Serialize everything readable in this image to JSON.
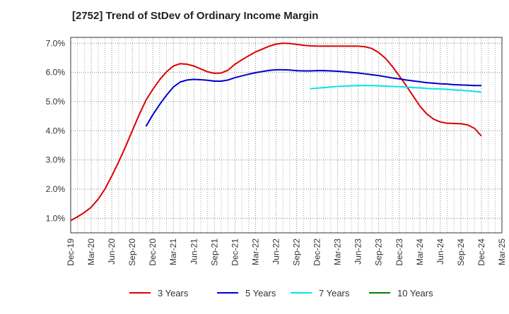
{
  "title": "[2752]  Trend of StDev of Ordinary Income Margin",
  "chart_data": {
    "type": "line",
    "title": "[2752]  Trend of StDev of Ordinary Income Margin",
    "xlabel": "",
    "ylabel": "",
    "x_ticks": [
      "Dec-19",
      "Mar-20",
      "Jun-20",
      "Sep-20",
      "Dec-20",
      "Mar-21",
      "Jun-21",
      "Sep-21",
      "Dec-21",
      "Mar-22",
      "Jun-22",
      "Sep-22",
      "Dec-22",
      "Mar-23",
      "Jun-23",
      "Sep-23",
      "Dec-23",
      "Mar-24",
      "Jun-24",
      "Sep-24",
      "Dec-24",
      "Mar-25"
    ],
    "y_ticks": [
      "1.0%",
      "2.0%",
      "3.0%",
      "4.0%",
      "5.0%",
      "6.0%",
      "7.0%"
    ],
    "ylim": [
      0.5,
      7.2
    ],
    "grid": true,
    "legend_position": "bottom",
    "series": [
      {
        "name": "3 Years",
        "color": "#dd0000",
        "x": [
          "Dec-19",
          "Jan-20",
          "Feb-20",
          "Mar-20",
          "Apr-20",
          "May-20",
          "Jun-20",
          "Jul-20",
          "Aug-20",
          "Sep-20",
          "Oct-20",
          "Nov-20",
          "Dec-20",
          "Jan-21",
          "Feb-21",
          "Mar-21",
          "Apr-21",
          "May-21",
          "Jun-21",
          "Jul-21",
          "Aug-21",
          "Sep-21",
          "Oct-21",
          "Nov-21",
          "Dec-21",
          "Jan-22",
          "Feb-22",
          "Mar-22",
          "Apr-22",
          "May-22",
          "Jun-22",
          "Jul-22",
          "Aug-22",
          "Sep-22",
          "Oct-22",
          "Nov-22",
          "Dec-22",
          "Jan-23",
          "Feb-23",
          "Mar-23",
          "Apr-23",
          "May-23",
          "Jun-23",
          "Jul-23",
          "Aug-23",
          "Sep-23",
          "Oct-23",
          "Nov-23",
          "Dec-23",
          "Jan-24",
          "Feb-24",
          "Mar-24",
          "Apr-24",
          "May-24",
          "Jun-24",
          "Jul-24",
          "Aug-24",
          "Sep-24",
          "Oct-24",
          "Nov-24",
          "Dec-24"
        ],
        "values": [
          0.92,
          1.05,
          1.2,
          1.38,
          1.65,
          2.0,
          2.45,
          2.93,
          3.45,
          4.0,
          4.55,
          5.05,
          5.42,
          5.75,
          6.02,
          6.22,
          6.3,
          6.28,
          6.22,
          6.12,
          6.02,
          5.97,
          5.98,
          6.08,
          6.28,
          6.43,
          6.57,
          6.7,
          6.8,
          6.9,
          6.97,
          7.0,
          6.99,
          6.96,
          6.93,
          6.91,
          6.9,
          6.9,
          6.9,
          6.9,
          6.9,
          6.9,
          6.9,
          6.88,
          6.82,
          6.68,
          6.48,
          6.2,
          5.88,
          5.55,
          5.2,
          4.85,
          4.58,
          4.4,
          4.3,
          4.26,
          4.25,
          4.24,
          4.2,
          4.08,
          3.82
        ]
      },
      {
        "name": "5 Years",
        "color": "#0000cc",
        "x": [
          "Nov-20",
          "Dec-20",
          "Jan-21",
          "Feb-21",
          "Mar-21",
          "Apr-21",
          "May-21",
          "Jun-21",
          "Jul-21",
          "Aug-21",
          "Sep-21",
          "Oct-21",
          "Nov-21",
          "Dec-21",
          "Jan-22",
          "Feb-22",
          "Mar-22",
          "Apr-22",
          "May-22",
          "Jun-22",
          "Jul-22",
          "Aug-22",
          "Sep-22",
          "Oct-22",
          "Nov-22",
          "Dec-22",
          "Jan-23",
          "Feb-23",
          "Mar-23",
          "Apr-23",
          "May-23",
          "Jun-23",
          "Jul-23",
          "Aug-23",
          "Sep-23",
          "Oct-23",
          "Nov-23",
          "Dec-23",
          "Jan-24",
          "Feb-24",
          "Mar-24",
          "Apr-24",
          "May-24",
          "Jun-24",
          "Jul-24",
          "Aug-24",
          "Sep-24",
          "Oct-24",
          "Nov-24",
          "Dec-24"
        ],
        "values": [
          4.15,
          4.55,
          4.9,
          5.22,
          5.5,
          5.67,
          5.74,
          5.76,
          5.75,
          5.73,
          5.7,
          5.7,
          5.74,
          5.82,
          5.88,
          5.94,
          5.99,
          6.03,
          6.07,
          6.09,
          6.09,
          6.08,
          6.06,
          6.05,
          6.05,
          6.06,
          6.06,
          6.05,
          6.04,
          6.02,
          6.0,
          5.98,
          5.95,
          5.92,
          5.89,
          5.85,
          5.81,
          5.78,
          5.74,
          5.71,
          5.68,
          5.65,
          5.63,
          5.61,
          5.6,
          5.58,
          5.57,
          5.56,
          5.55,
          5.55
        ]
      },
      {
        "name": "7 Years",
        "color": "#00e5ee",
        "x": [
          "Nov-22",
          "Dec-22",
          "Jan-23",
          "Feb-23",
          "Mar-23",
          "Apr-23",
          "May-23",
          "Jun-23",
          "Jul-23",
          "Aug-23",
          "Sep-23",
          "Oct-23",
          "Nov-23",
          "Dec-23",
          "Jan-24",
          "Feb-24",
          "Mar-24",
          "Apr-24",
          "May-24",
          "Jun-24",
          "Jul-24",
          "Aug-24",
          "Sep-24",
          "Oct-24",
          "Nov-24",
          "Dec-24"
        ],
        "values": [
          5.44,
          5.46,
          5.48,
          5.5,
          5.52,
          5.53,
          5.54,
          5.55,
          5.55,
          5.55,
          5.54,
          5.53,
          5.52,
          5.51,
          5.5,
          5.48,
          5.47,
          5.45,
          5.44,
          5.43,
          5.42,
          5.4,
          5.39,
          5.37,
          5.35,
          5.32
        ]
      },
      {
        "name": "10 Years",
        "color": "#008000",
        "x": [],
        "values": []
      }
    ]
  }
}
